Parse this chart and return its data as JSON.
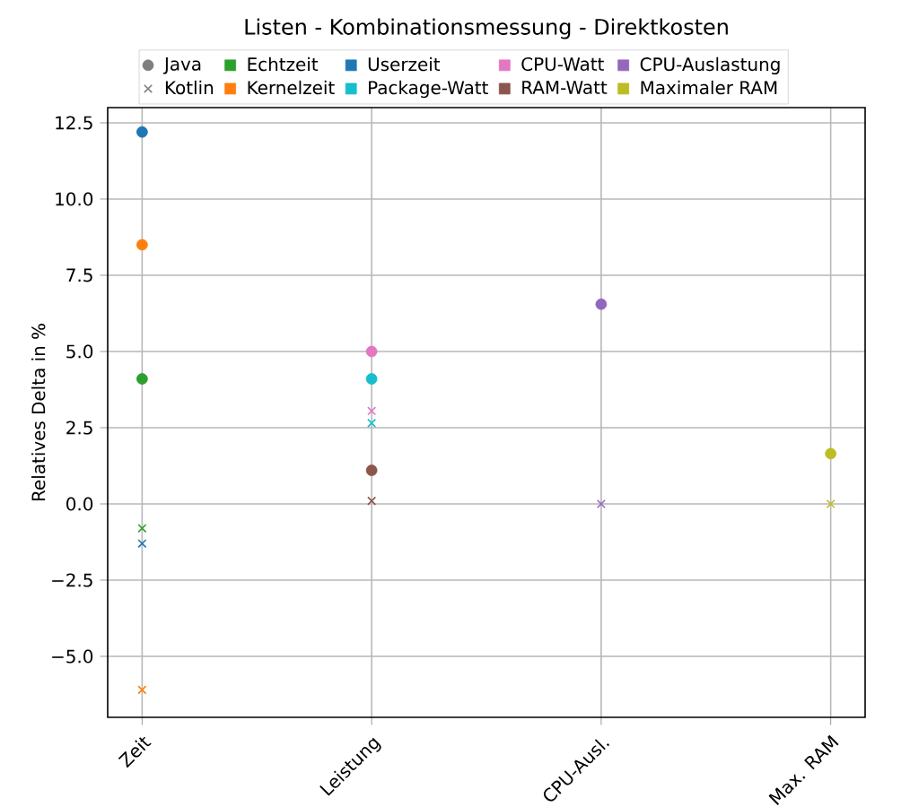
{
  "chart_data": {
    "type": "scatter",
    "title": "Listen - Kombinationsmessung - Direktkosten",
    "ylabel": "Relatives Delta in %",
    "categories": [
      "Zeit",
      "Leistung",
      "CPU-Ausl.",
      "Max. RAM"
    ],
    "ylim": [
      -7,
      13
    ],
    "yticks": [
      {
        "value": -5,
        "label": "−5.0"
      },
      {
        "value": -2.5,
        "label": "−2.5"
      },
      {
        "value": 0,
        "label": "0.0"
      },
      {
        "value": 2.5,
        "label": "2.5"
      },
      {
        "value": 5,
        "label": "5.0"
      },
      {
        "value": 7.5,
        "label": "7.5"
      },
      {
        "value": 10,
        "label": "10.0"
      },
      {
        "value": 12.5,
        "label": "12.5"
      }
    ],
    "grid": true,
    "legend": "top",
    "series": [
      {
        "name": "Java",
        "color": "#7f7f7f",
        "marker": "circle",
        "values": [
          null,
          null,
          null,
          null
        ]
      },
      {
        "name": "Kotlin",
        "color": "#7f7f7f",
        "marker": "cross",
        "values": [
          null,
          null,
          null,
          null
        ]
      },
      {
        "name": "Echtzeit",
        "color": "#2ca02c",
        "marker": "square",
        "values": [
          null,
          null,
          null,
          null
        ]
      },
      {
        "name": "Kernelzeit",
        "color": "#ff7f0e",
        "marker": "square",
        "values": [
          null,
          null,
          null,
          null
        ]
      },
      {
        "name": "Userzeit",
        "color": "#1f77b4",
        "marker": "square",
        "values": [
          null,
          null,
          null,
          null
        ]
      },
      {
        "name": "Package-Watt",
        "color": "#17becf",
        "marker": "square",
        "values": [
          null,
          null,
          null,
          null
        ]
      },
      {
        "name": "CPU-Watt",
        "color": "#e377c2",
        "marker": "square",
        "values": [
          null,
          null,
          null,
          null
        ]
      },
      {
        "name": "RAM-Watt",
        "color": "#8c564b",
        "marker": "square",
        "values": [
          null,
          null,
          null,
          null
        ]
      },
      {
        "name": "CPU-Auslastung",
        "color": "#9467bd",
        "marker": "square",
        "values": [
          null,
          null,
          null,
          null
        ]
      },
      {
        "name": "Maximaler RAM",
        "color": "#bcbd22",
        "marker": "square",
        "values": [
          null,
          null,
          null,
          null
        ]
      },
      {
        "color": "#2ca02c",
        "marker": "circle",
        "values": [
          4.1,
          null,
          null,
          null
        ]
      },
      {
        "color": "#2ca02c",
        "marker": "cross",
        "values": [
          -0.8,
          null,
          null,
          null
        ]
      },
      {
        "color": "#ff7f0e",
        "marker": "circle",
        "values": [
          8.5,
          null,
          null,
          null
        ]
      },
      {
        "color": "#ff7f0e",
        "marker": "cross",
        "values": [
          -6.1,
          null,
          null,
          null
        ]
      },
      {
        "color": "#1f77b4",
        "marker": "circle",
        "values": [
          12.2,
          null,
          null,
          null
        ]
      },
      {
        "color": "#1f77b4",
        "marker": "cross",
        "values": [
          -1.3,
          null,
          null,
          null
        ]
      },
      {
        "color": "#17becf",
        "marker": "circle",
        "values": [
          null,
          4.1,
          null,
          null
        ]
      },
      {
        "color": "#17becf",
        "marker": "cross",
        "values": [
          null,
          2.65,
          null,
          null
        ]
      },
      {
        "color": "#e377c2",
        "marker": "circle",
        "values": [
          null,
          5.0,
          null,
          null
        ]
      },
      {
        "color": "#e377c2",
        "marker": "cross",
        "values": [
          null,
          3.05,
          null,
          null
        ]
      },
      {
        "color": "#8c564b",
        "marker": "circle",
        "values": [
          null,
          1.1,
          null,
          null
        ]
      },
      {
        "color": "#8c564b",
        "marker": "cross",
        "values": [
          null,
          0.1,
          null,
          null
        ]
      },
      {
        "color": "#9467bd",
        "marker": "circle",
        "values": [
          null,
          null,
          6.55,
          null
        ]
      },
      {
        "color": "#9467bd",
        "marker": "cross",
        "values": [
          null,
          null,
          0.0,
          null
        ]
      },
      {
        "color": "#bcbd22",
        "marker": "circle",
        "values": [
          null,
          null,
          null,
          1.65
        ]
      },
      {
        "color": "#bcbd22",
        "marker": "cross",
        "values": [
          null,
          null,
          null,
          0.0
        ]
      }
    ]
  }
}
